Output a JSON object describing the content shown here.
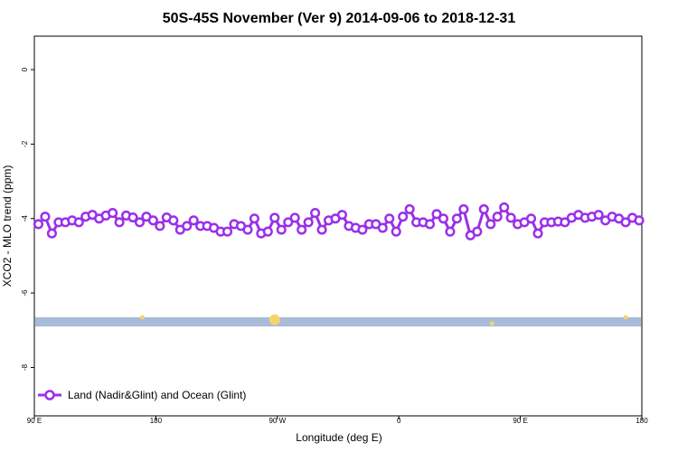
{
  "chart_data": {
    "type": "line",
    "title": "50S-45S November (Ver 9)   2014-09-06 to 2018-12-31",
    "xlabel": "Longitude (deg E)",
    "ylabel": "XCO2 - MLO trend (ppm)",
    "x_ticks": [
      {
        "value": 90,
        "label": "90 E"
      },
      {
        "value": 180,
        "label": "180"
      },
      {
        "value": 270,
        "label": "90 W"
      },
      {
        "value": 360,
        "label": "0"
      },
      {
        "value": 450,
        "label": "90 E"
      },
      {
        "value": 540,
        "label": "180"
      }
    ],
    "y_ticks": [
      {
        "value": 0,
        "label": "0"
      },
      {
        "value": -2,
        "label": "-2"
      },
      {
        "value": -4,
        "label": "-4"
      },
      {
        "value": -6,
        "label": "-6"
      },
      {
        "value": -8,
        "label": "-8"
      }
    ],
    "xlim": [
      90,
      540
    ],
    "ylim": [
      -9.3,
      0.9
    ],
    "grid": false,
    "legend_position": "bottom-left",
    "series": [
      {
        "name": "Land (Nadir&Glint) and Ocean (Glint)",
        "color": "#9b30e8",
        "marker": "open-circle",
        "x": [
          93,
          98,
          103,
          108,
          113,
          118,
          123,
          128,
          133,
          138,
          143,
          148,
          153,
          158,
          163,
          168,
          173,
          178,
          183,
          188,
          193,
          198,
          203,
          208,
          213,
          218,
          223,
          228,
          233,
          238,
          243,
          248,
          253,
          258,
          263,
          268,
          273,
          278,
          283,
          288,
          293,
          298,
          303,
          308,
          313,
          318,
          323,
          328,
          333,
          338,
          343,
          348,
          353,
          358,
          363,
          368,
          373,
          378,
          383,
          388,
          393,
          398,
          403,
          408,
          413,
          418,
          423,
          428,
          433,
          438,
          443,
          448,
          453,
          458,
          463,
          468,
          473,
          478,
          483,
          488,
          493,
          498,
          503,
          508,
          513,
          518,
          523,
          528,
          533,
          538
        ],
        "values": [
          -4.15,
          -3.95,
          -4.4,
          -4.1,
          -4.1,
          -4.05,
          -4.1,
          -3.95,
          -3.9,
          -4.0,
          -3.92,
          -3.85,
          -4.1,
          -3.92,
          -3.97,
          -4.1,
          -3.95,
          -4.05,
          -4.2,
          -3.97,
          -4.05,
          -4.3,
          -4.2,
          -4.05,
          -4.2,
          -4.2,
          -4.25,
          -4.35,
          -4.35,
          -4.15,
          -4.2,
          -4.3,
          -4.0,
          -4.4,
          -4.35,
          -3.98,
          -4.3,
          -4.1,
          -3.98,
          -4.3,
          -4.1,
          -3.85,
          -4.3,
          -4.05,
          -4.0,
          -3.9,
          -4.2,
          -4.25,
          -4.3,
          -4.15,
          -4.15,
          -4.25,
          -4.0,
          -4.35,
          -3.95,
          -3.75,
          -4.1,
          -4.1,
          -4.15,
          -3.88,
          -4.0,
          -4.35,
          -4.0,
          -3.75,
          -4.45,
          -4.35,
          -3.75,
          -4.15,
          -3.95,
          -3.7,
          -3.98,
          -4.15,
          -4.1,
          -4.0,
          -4.4,
          -4.1,
          -4.1,
          -4.08,
          -4.1,
          -3.98,
          -3.9,
          -3.98,
          -3.95,
          -3.9,
          -4.05,
          -3.95,
          -4.0,
          -4.1,
          -3.98,
          -4.05
        ]
      }
    ],
    "band": {
      "y_from": -6.9,
      "y_to": -6.65,
      "color": "#a8bcd8"
    },
    "land_markers": {
      "color": "#f7d36b",
      "points": [
        {
          "x": 170,
          "y": -6.65
        },
        {
          "x": 268,
          "y": -6.72
        },
        {
          "x": 429,
          "y": -6.82
        },
        {
          "x": 528,
          "y": -6.65
        }
      ]
    }
  }
}
